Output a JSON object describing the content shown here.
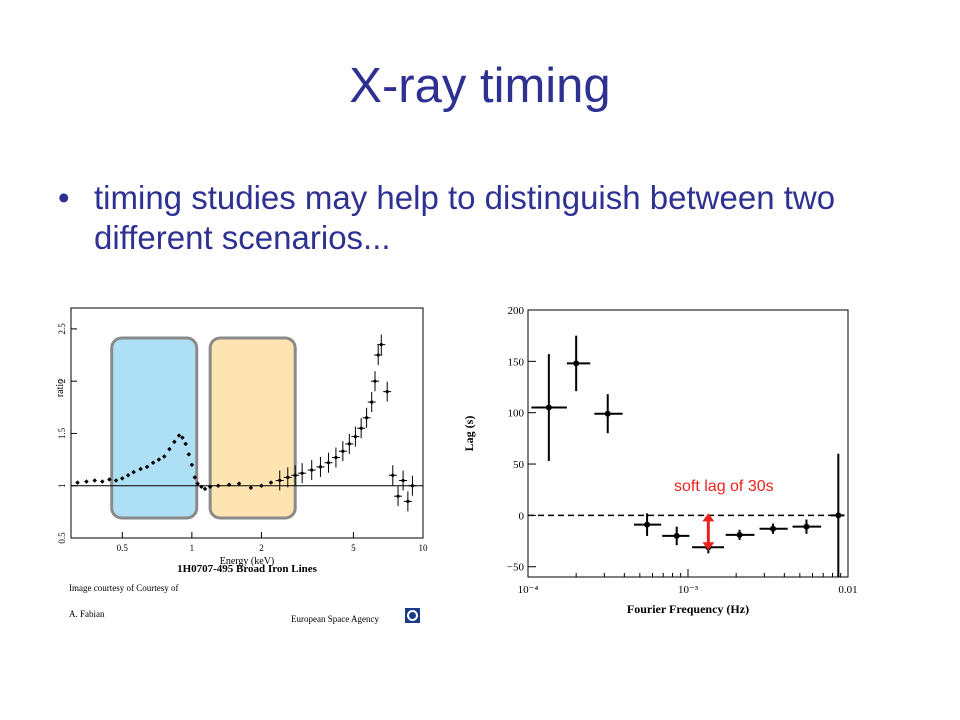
{
  "slide": {
    "title": "X-ray timing",
    "bullet_symbol": "•",
    "bullet_text": "timing studies may help to distinguish between two different scenarios..."
  },
  "colors": {
    "title": "#2e3192",
    "highlight_blue": "#aee0f5",
    "highlight_orange": "#fde4b0",
    "annotation": "#e8231e"
  },
  "chart_data": [
    {
      "type": "scatter",
      "title": "1H0707-495 Broad Iron Lines",
      "xlabel": "Energy (keV)",
      "ylabel": "ratio",
      "x_scale": "log",
      "xlim": [
        0.3,
        10
      ],
      "ylim": [
        0.5,
        2.7
      ],
      "x_ticks": [
        0.5,
        1,
        2,
        5,
        10
      ],
      "x_tick_labels": [
        "0.5",
        "1",
        "2",
        "5",
        "10"
      ],
      "y_ticks": [
        0.5,
        1,
        1.5,
        2,
        2.5
      ],
      "y_tick_labels": [
        "0.5",
        "1",
        "1.5",
        "2",
        "2.5"
      ],
      "reference_line": 1,
      "highlight_bands": [
        {
          "x_range": [
            0.45,
            1.05
          ],
          "color": "blue"
        },
        {
          "x_range": [
            1.2,
            2.8
          ],
          "color": "orange"
        }
      ],
      "credits": {
        "line1": "Image courtesy of Courtesy of",
        "line2": "A. Fabian",
        "agency": "European Space Agency"
      },
      "series": [
        {
          "x": [
            0.32,
            0.35,
            0.38,
            0.41,
            0.44,
            0.47,
            0.5,
            0.53,
            0.56,
            0.6,
            0.64,
            0.68,
            0.72,
            0.76,
            0.8,
            0.84,
            0.88,
            0.91,
            0.94,
            0.97,
            1.0,
            1.03,
            1.06,
            1.1,
            1.14,
            1.2,
            1.3,
            1.45,
            1.6,
            1.8,
            2.0,
            2.2,
            2.4,
            2.6,
            2.8,
            3.0,
            3.3,
            3.6,
            3.9,
            4.2,
            4.5,
            4.8,
            5.1,
            5.4,
            5.7,
            6.0,
            6.2,
            6.4,
            6.6,
            7.0,
            7.4,
            7.8,
            8.2,
            8.6,
            9.0
          ],
          "y": [
            1.03,
            1.04,
            1.05,
            1.04,
            1.06,
            1.05,
            1.07,
            1.1,
            1.13,
            1.16,
            1.18,
            1.22,
            1.25,
            1.28,
            1.35,
            1.42,
            1.48,
            1.46,
            1.4,
            1.3,
            1.2,
            1.08,
            1.02,
            0.99,
            0.97,
            0.99,
            1.0,
            1.01,
            1.02,
            0.98,
            1.0,
            1.03,
            1.05,
            1.08,
            1.1,
            1.12,
            1.15,
            1.18,
            1.22,
            1.27,
            1.33,
            1.4,
            1.47,
            1.55,
            1.65,
            1.8,
            2.0,
            2.25,
            2.35,
            1.9,
            1.1,
            0.9,
            1.05,
            0.85,
            1.0
          ]
        }
      ]
    },
    {
      "type": "scatter",
      "xlabel": "Fourier Frequency (Hz)",
      "ylabel": "Lag (s)",
      "x_scale": "log",
      "xlim": [
        0.0001,
        0.01
      ],
      "ylim": [
        -60,
        200
      ],
      "x_ticks": [
        0.0001,
        0.001,
        0.01
      ],
      "x_tick_labels": [
        "10⁻⁴",
        "10⁻³",
        "0.01"
      ],
      "y_ticks": [
        -50,
        0,
        50,
        100,
        150,
        200
      ],
      "y_tick_labels": [
        "−50",
        "0",
        "50",
        "100",
        "150",
        "200"
      ],
      "zero_line": true,
      "annotation": "soft lag of 30s",
      "series": [
        {
          "points": [
            {
              "x": 0.000135,
              "y": 105,
              "x_lo": 0.000105,
              "x_hi": 0.000175,
              "y_err": 52
            },
            {
              "x": 0.0002,
              "y": 148,
              "x_lo": 0.000175,
              "x_hi": 0.000245,
              "y_err": 27
            },
            {
              "x": 0.000315,
              "y": 99,
              "x_lo": 0.00026,
              "x_hi": 0.00039,
              "y_err": 19
            },
            {
              "x": 0.000555,
              "y": -9,
              "x_lo": 0.00046,
              "x_hi": 0.00068,
              "y_err": 11
            },
            {
              "x": 0.00085,
              "y": -20,
              "x_lo": 0.00069,
              "x_hi": 0.00102,
              "y_err": 9
            },
            {
              "x": 0.00134,
              "y": -31,
              "x_lo": 0.00106,
              "x_hi": 0.00168,
              "y_err": 6
            },
            {
              "x": 0.0021,
              "y": -19,
              "x_lo": 0.00172,
              "x_hi": 0.0026,
              "y_err": 5
            },
            {
              "x": 0.0034,
              "y": -13,
              "x_lo": 0.0028,
              "x_hi": 0.0042,
              "y_err": 5
            },
            {
              "x": 0.0055,
              "y": -11,
              "x_lo": 0.0045,
              "x_hi": 0.0068,
              "y_err": 7
            },
            {
              "x": 0.0087,
              "y": 0,
              "x_lo": 0.0078,
              "x_hi": 0.0095,
              "y_err": 60
            }
          ]
        }
      ]
    }
  ]
}
